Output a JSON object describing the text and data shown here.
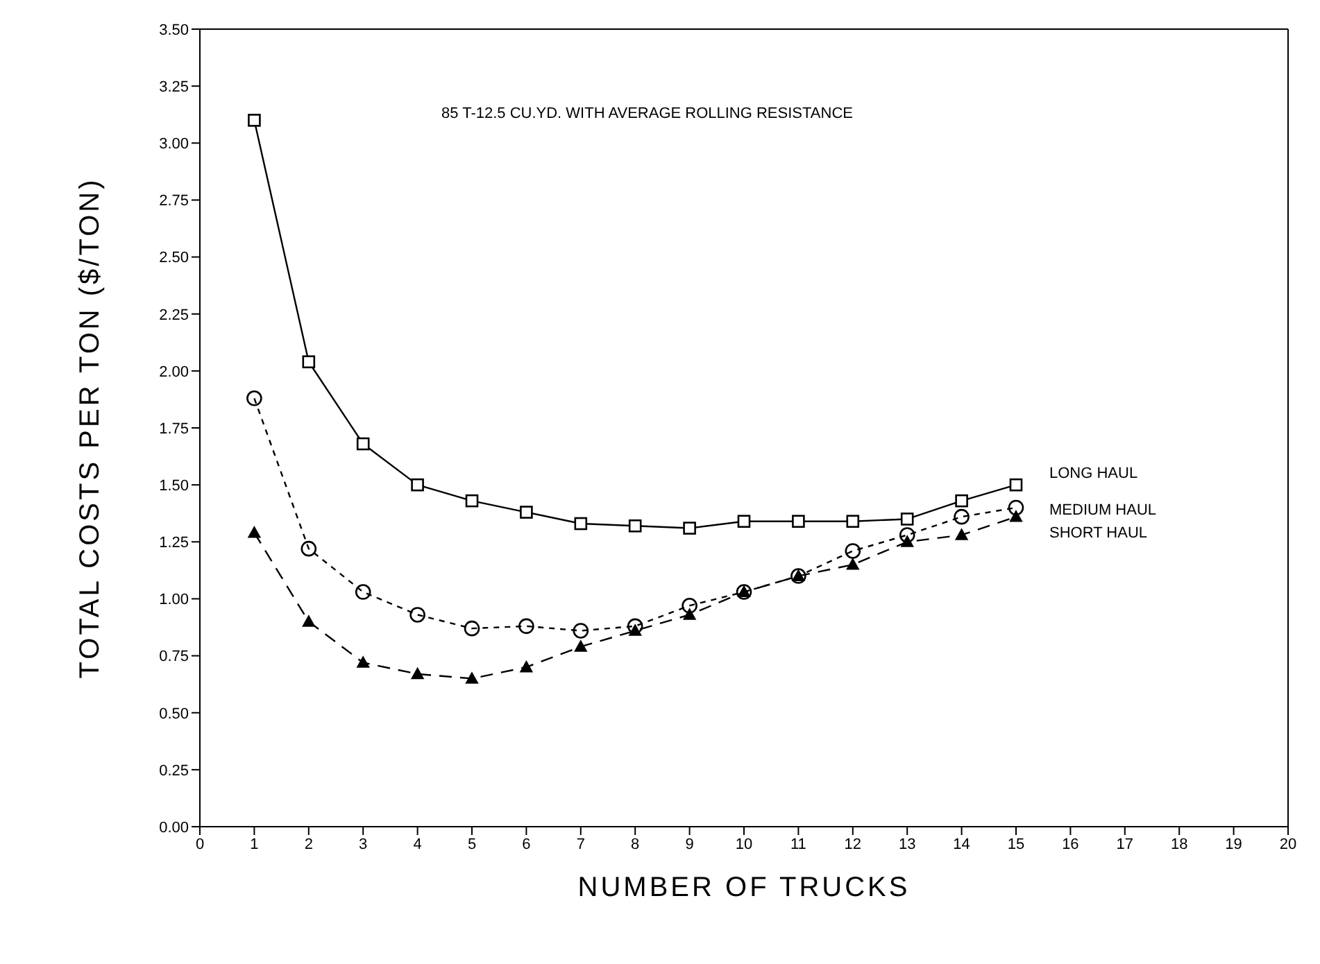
{
  "chart_data": {
    "type": "line",
    "xlabel": "NUMBER OF TRUCKS",
    "ylabel": "TOTAL COSTS PER TON ($/TON)",
    "annotations": [
      "85 T-12.5 CU.YD. WITH AVERAGE ROLLING RESISTANCE"
    ],
    "x": [
      1,
      2,
      3,
      4,
      5,
      6,
      7,
      8,
      9,
      10,
      11,
      12,
      13,
      14,
      15
    ],
    "series": [
      {
        "name": "LONG HAUL",
        "color": "#000000",
        "marker": "square",
        "line_style": "solid",
        "values": [
          3.1,
          2.04,
          1.68,
          1.5,
          1.43,
          1.38,
          1.33,
          1.32,
          1.31,
          1.34,
          1.34,
          1.34,
          1.35,
          1.43,
          1.5
        ]
      },
      {
        "name": "MEDIUM HAUL",
        "color": "#000000",
        "marker": "circle",
        "line_style": "dotted",
        "values": [
          1.88,
          1.22,
          1.03,
          0.93,
          0.87,
          0.88,
          0.86,
          0.88,
          0.97,
          1.03,
          1.1,
          1.21,
          1.28,
          1.36,
          1.4
        ]
      },
      {
        "name": "SHORT HAUL",
        "color": "#000000",
        "marker": "triangle",
        "line_style": "dashed",
        "values": [
          1.29,
          0.9,
          0.72,
          0.67,
          0.65,
          0.7,
          0.79,
          0.86,
          0.93,
          1.03,
          1.1,
          1.15,
          1.25,
          1.28,
          1.36
        ]
      }
    ],
    "xlim": [
      0,
      20
    ],
    "xticks": [
      0,
      1,
      2,
      3,
      4,
      5,
      6,
      7,
      8,
      9,
      10,
      11,
      12,
      13,
      14,
      15,
      16,
      17,
      18,
      19,
      20
    ],
    "ylim": [
      0,
      3.5
    ],
    "yticks": [
      {
        "value": 0,
        "label": "0.00"
      },
      {
        "value": 0.25,
        "label": "0.25"
      },
      {
        "value": 0.5,
        "label": "0.50"
      },
      {
        "value": 0.75,
        "label": "0.75"
      },
      {
        "value": 1,
        "label": "1.00"
      },
      {
        "value": 1.25,
        "label": "1.25"
      },
      {
        "value": 1.5,
        "label": "1.50"
      },
      {
        "value": 1.75,
        "label": "1.75"
      },
      {
        "value": 2,
        "label": "2.00"
      },
      {
        "value": 2.25,
        "label": "2.25"
      },
      {
        "value": 2.5,
        "label": "2.50"
      },
      {
        "value": 2.75,
        "label": "2.75"
      },
      {
        "value": 3,
        "label": "3.00"
      },
      {
        "value": 3.25,
        "label": "3.25"
      },
      {
        "value": 3.5,
        "label": "3.50"
      }
    ],
    "grid": false
  }
}
